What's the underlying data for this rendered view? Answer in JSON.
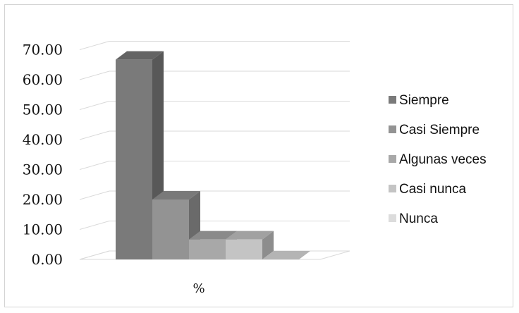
{
  "chart_data": {
    "type": "bar",
    "categories": [
      "%"
    ],
    "series": [
      {
        "name": "Siempre",
        "values": [
          66.67
        ],
        "color": "#7a7a7a"
      },
      {
        "name": "Casi Siempre",
        "values": [
          20.0
        ],
        "color": "#939393"
      },
      {
        "name": "Algunas veces",
        "values": [
          6.67
        ],
        "color": "#a8a8a8"
      },
      {
        "name": "Casi nunca",
        "values": [
          6.67
        ],
        "color": "#c4c4c4"
      },
      {
        "name": "Nunca",
        "values": [
          0.0
        ],
        "color": "#dcdcdc"
      }
    ],
    "y_ticks": [
      "0.00",
      "10.00",
      "20.00",
      "30.00",
      "40.00",
      "50.00",
      "60.00",
      "70.00"
    ],
    "ylim": [
      0,
      70
    ],
    "grid": true,
    "legend_position": "right",
    "three_d": true
  }
}
